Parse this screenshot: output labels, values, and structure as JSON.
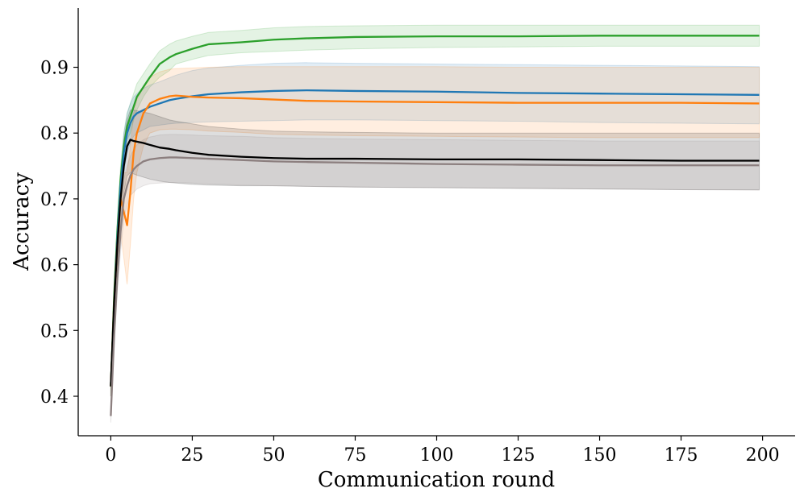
{
  "chart_data": {
    "type": "line",
    "title": "",
    "xlabel": "Communication round",
    "ylabel": "Accuracy",
    "xlim": [
      -10,
      210
    ],
    "ylim": [
      0.34,
      0.99
    ],
    "xticks": [
      0,
      25,
      50,
      75,
      100,
      125,
      150,
      175,
      200
    ],
    "yticks": [
      0.4,
      0.5,
      0.6,
      0.7,
      0.8,
      0.9
    ],
    "xtick_labels": [
      "0",
      "25",
      "50",
      "75",
      "100",
      "125",
      "150",
      "175",
      "200"
    ],
    "ytick_labels": [
      "0.4",
      "0.5",
      "0.6",
      "0.7",
      "0.8",
      "0.9"
    ],
    "grid": false,
    "x": [
      0,
      1,
      2,
      3,
      4,
      5,
      6,
      7,
      8,
      10,
      12,
      15,
      18,
      20,
      25,
      30,
      40,
      50,
      60,
      75,
      100,
      125,
      150,
      175,
      199
    ],
    "series": [
      {
        "color": "#2ca02c",
        "values": [
          0.415,
          0.55,
          0.65,
          0.73,
          0.78,
          0.81,
          0.825,
          0.84,
          0.855,
          0.87,
          0.885,
          0.905,
          0.915,
          0.92,
          0.928,
          0.935,
          0.938,
          0.942,
          0.944,
          0.946,
          0.947,
          0.947,
          0.948,
          0.948,
          0.948
        ],
        "band_lower": [
          0.4,
          0.53,
          0.63,
          0.71,
          0.75,
          0.79,
          0.8,
          0.82,
          0.835,
          0.855,
          0.87,
          0.885,
          0.895,
          0.905,
          0.912,
          0.918,
          0.922,
          0.924,
          0.926,
          0.928,
          0.93,
          0.931,
          0.932,
          0.932,
          0.932
        ],
        "band_upper": [
          0.43,
          0.57,
          0.67,
          0.75,
          0.8,
          0.83,
          0.845,
          0.86,
          0.875,
          0.89,
          0.905,
          0.925,
          0.935,
          0.94,
          0.947,
          0.953,
          0.956,
          0.96,
          0.962,
          0.963,
          0.964,
          0.964,
          0.964,
          0.964,
          0.964
        ]
      },
      {
        "color": "#1f77b4",
        "values": [
          0.415,
          0.54,
          0.64,
          0.72,
          0.77,
          0.8,
          0.815,
          0.825,
          0.83,
          0.835,
          0.84,
          0.845,
          0.85,
          0.852,
          0.856,
          0.859,
          0.862,
          0.864,
          0.865,
          0.864,
          0.863,
          0.861,
          0.86,
          0.859,
          0.858
        ],
        "band_lower": [
          0.4,
          0.52,
          0.62,
          0.7,
          0.74,
          0.77,
          0.785,
          0.795,
          0.8,
          0.805,
          0.81,
          0.812,
          0.814,
          0.815,
          0.816,
          0.817,
          0.818,
          0.819,
          0.82,
          0.82,
          0.819,
          0.818,
          0.816,
          0.815,
          0.814
        ],
        "band_upper": [
          0.43,
          0.56,
          0.66,
          0.74,
          0.8,
          0.83,
          0.845,
          0.855,
          0.86,
          0.868,
          0.873,
          0.878,
          0.884,
          0.888,
          0.895,
          0.899,
          0.903,
          0.906,
          0.907,
          0.906,
          0.905,
          0.904,
          0.903,
          0.902,
          0.901
        ]
      },
      {
        "color": "#ff7f0e",
        "values": [
          0.415,
          0.54,
          0.63,
          0.7,
          0.68,
          0.66,
          0.71,
          0.77,
          0.8,
          0.83,
          0.845,
          0.852,
          0.856,
          0.857,
          0.855,
          0.854,
          0.853,
          0.851,
          0.849,
          0.848,
          0.847,
          0.846,
          0.846,
          0.846,
          0.845
        ],
        "band_lower": [
          0.4,
          0.52,
          0.6,
          0.65,
          0.61,
          0.57,
          0.63,
          0.7,
          0.74,
          0.78,
          0.8,
          0.805,
          0.806,
          0.806,
          0.805,
          0.803,
          0.801,
          0.798,
          0.797,
          0.796,
          0.795,
          0.794,
          0.793,
          0.793,
          0.793
        ],
        "band_upper": [
          0.43,
          0.56,
          0.66,
          0.74,
          0.74,
          0.74,
          0.78,
          0.83,
          0.85,
          0.87,
          0.885,
          0.893,
          0.897,
          0.898,
          0.899,
          0.9,
          0.901,
          0.901,
          0.901,
          0.901,
          0.901,
          0.9,
          0.9,
          0.9,
          0.9
        ]
      },
      {
        "color": "#000000",
        "values": [
          0.415,
          0.54,
          0.63,
          0.7,
          0.75,
          0.78,
          0.79,
          0.788,
          0.787,
          0.785,
          0.782,
          0.778,
          0.776,
          0.774,
          0.77,
          0.767,
          0.764,
          0.762,
          0.761,
          0.761,
          0.76,
          0.76,
          0.759,
          0.758,
          0.758
        ],
        "band_lower": [
          0.4,
          0.52,
          0.6,
          0.67,
          0.71,
          0.735,
          0.74,
          0.738,
          0.736,
          0.733,
          0.73,
          0.727,
          0.725,
          0.724,
          0.722,
          0.721,
          0.72,
          0.72,
          0.719,
          0.718,
          0.717,
          0.716,
          0.715,
          0.714,
          0.714
        ],
        "band_upper": [
          0.43,
          0.56,
          0.66,
          0.73,
          0.79,
          0.82,
          0.835,
          0.835,
          0.834,
          0.832,
          0.83,
          0.825,
          0.82,
          0.818,
          0.814,
          0.81,
          0.806,
          0.803,
          0.802,
          0.801,
          0.8,
          0.8,
          0.8,
          0.8,
          0.8
        ]
      },
      {
        "color": "#8c7f7f",
        "values": [
          0.37,
          0.49,
          0.58,
          0.65,
          0.7,
          0.72,
          0.735,
          0.745,
          0.75,
          0.757,
          0.76,
          0.762,
          0.763,
          0.763,
          0.762,
          0.761,
          0.759,
          0.757,
          0.756,
          0.755,
          0.753,
          0.752,
          0.751,
          0.751,
          0.751
        ],
        "band_lower": [
          0.36,
          0.47,
          0.56,
          0.62,
          0.67,
          0.69,
          0.705,
          0.71,
          0.715,
          0.72,
          0.723,
          0.724,
          0.725,
          0.725,
          0.724,
          0.723,
          0.721,
          0.72,
          0.719,
          0.718,
          0.717,
          0.716,
          0.715,
          0.714,
          0.713
        ],
        "band_upper": [
          0.38,
          0.51,
          0.6,
          0.68,
          0.73,
          0.75,
          0.765,
          0.775,
          0.782,
          0.79,
          0.794,
          0.797,
          0.798,
          0.798,
          0.797,
          0.796,
          0.795,
          0.793,
          0.792,
          0.791,
          0.79,
          0.789,
          0.788,
          0.788,
          0.788
        ]
      }
    ]
  }
}
